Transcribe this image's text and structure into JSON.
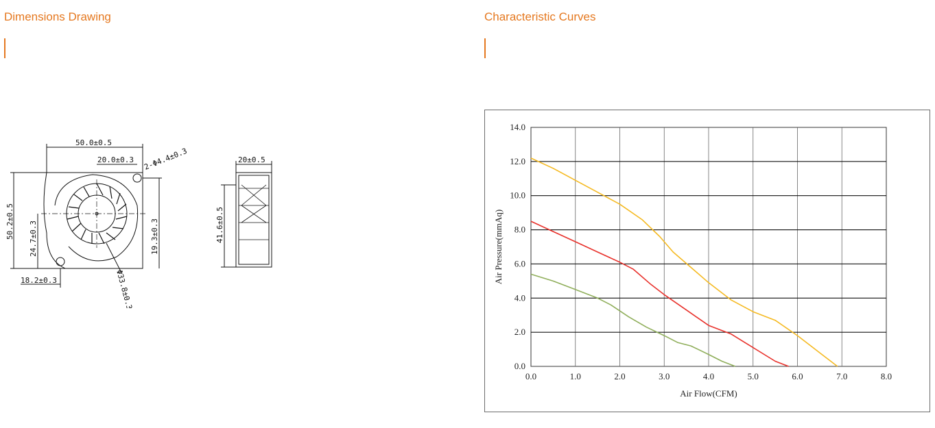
{
  "sections": {
    "left_title": "Dimensions Drawing",
    "right_title": "Characteristic Curves"
  },
  "drawing": {
    "dim_width": "50.0±0.5",
    "dim_hub": "20.0±0.3",
    "dim_hole": "2-Φ4.4±0.3",
    "dim_height": "50.2±0.5",
    "dim_left_mid": "24.7±0.3",
    "dim_right_mid": "19.3±0.3",
    "dim_bottom": "18.2±0.3",
    "dim_dia": "Φ33.8±0.3",
    "side_width": "20±0.5",
    "side_height": "41.6±0.5"
  },
  "accent_color": "#e5781f",
  "chart_data": {
    "type": "line",
    "xlabel": "Air Flow(CFM)",
    "ylabel": "Air Pressure(mmAq)",
    "xlim": [
      0,
      8
    ],
    "ylim": [
      0,
      14
    ],
    "xticks": [
      "0.0",
      "1.0",
      "2.0",
      "3.0",
      "4.0",
      "5.0",
      "6.0",
      "7.0",
      "8.0"
    ],
    "yticks": [
      "0.0",
      "2.0",
      "4.0",
      "6.0",
      "8.0",
      "10.0",
      "12.0",
      "14.0"
    ],
    "grid": true,
    "series": [
      {
        "color": "#f5b920",
        "x": [
          0,
          0.5,
          1.0,
          1.5,
          2.0,
          2.5,
          2.9,
          3.2,
          3.6,
          4.0,
          4.5,
          5.0,
          5.5,
          6.0,
          6.5,
          6.9
        ],
        "y": [
          12.2,
          11.6,
          10.9,
          10.2,
          9.5,
          8.6,
          7.6,
          6.7,
          5.8,
          4.9,
          3.9,
          3.2,
          2.7,
          1.8,
          0.8,
          0.0
        ]
      },
      {
        "color": "#e8302a",
        "x": [
          0,
          0.5,
          1.0,
          1.5,
          2.0,
          2.3,
          2.7,
          3.0,
          3.5,
          4.0,
          4.5,
          5.0,
          5.5,
          5.8
        ],
        "y": [
          8.5,
          7.9,
          7.3,
          6.7,
          6.1,
          5.7,
          4.8,
          4.2,
          3.3,
          2.4,
          1.9,
          1.1,
          0.3,
          0.0
        ]
      },
      {
        "color": "#8fae5a",
        "x": [
          0,
          0.5,
          1.0,
          1.5,
          1.8,
          2.2,
          2.6,
          3.0,
          3.3,
          3.6,
          4.0,
          4.3,
          4.6
        ],
        "y": [
          5.4,
          5.0,
          4.5,
          4.0,
          3.6,
          2.9,
          2.3,
          1.8,
          1.4,
          1.2,
          0.7,
          0.3,
          0.0
        ]
      }
    ]
  }
}
